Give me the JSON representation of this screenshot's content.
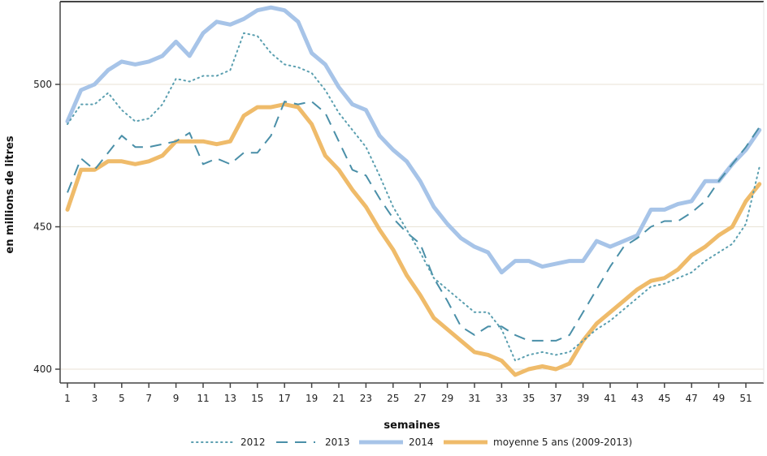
{
  "chart_data": {
    "type": "line",
    "title": "",
    "xlabel": "semaines",
    "ylabel": "en millions de litres",
    "xlim": [
      1,
      52
    ],
    "ylim": [
      395,
      532
    ],
    "x_ticks": [
      1,
      3,
      5,
      7,
      9,
      11,
      13,
      15,
      17,
      19,
      21,
      23,
      25,
      27,
      29,
      31,
      33,
      35,
      37,
      39,
      41,
      43,
      45,
      47,
      49,
      51
    ],
    "y_ticks": [
      400,
      450,
      500
    ],
    "grid": "horizontal",
    "legend_position": "bottom",
    "x": [
      1,
      2,
      3,
      4,
      5,
      6,
      7,
      8,
      9,
      10,
      11,
      12,
      13,
      14,
      15,
      16,
      17,
      18,
      19,
      20,
      21,
      22,
      23,
      24,
      25,
      26,
      27,
      28,
      29,
      30,
      31,
      32,
      33,
      34,
      35,
      36,
      37,
      38,
      39,
      40,
      41,
      42,
      43,
      44,
      45,
      46,
      47,
      48,
      49,
      50,
      51,
      52
    ],
    "series": [
      {
        "name": "2012",
        "style": "dotted",
        "color": "#5b9fb0",
        "values": [
          486,
          493,
          493,
          497,
          491,
          487,
          488,
          493,
          502,
          501,
          503,
          503,
          505,
          518,
          517,
          511,
          507,
          506,
          504,
          498,
          490,
          484,
          478,
          468,
          457,
          449,
          441,
          432,
          428,
          424,
          420,
          420,
          414,
          403,
          405,
          406,
          405,
          406,
          410,
          414,
          417,
          421,
          425,
          429,
          430,
          432,
          434,
          438,
          441,
          444,
          451,
          471
        ]
      },
      {
        "name": "2013",
        "style": "dashed",
        "color": "#4a8fa8",
        "values": [
          462,
          474,
          470,
          476,
          482,
          478,
          478,
          479,
          480,
          483,
          472,
          474,
          472,
          476,
          476,
          482,
          494,
          493,
          494,
          490,
          480,
          470,
          468,
          460,
          453,
          448,
          444,
          432,
          424,
          415,
          412,
          415,
          415,
          412,
          410,
          410,
          410,
          412,
          420,
          428,
          436,
          443,
          446,
          450,
          452,
          452,
          455,
          459,
          466,
          472,
          478,
          485
        ]
      },
      {
        "name": "2014",
        "style": "solid-thick",
        "color": "#a7c4e8",
        "values": [
          487,
          498,
          500,
          505,
          508,
          507,
          508,
          510,
          515,
          510,
          518,
          522,
          521,
          523,
          526,
          527,
          526,
          522,
          511,
          507,
          499,
          493,
          491,
          482,
          477,
          473,
          466,
          457,
          451,
          446,
          443,
          441,
          434,
          438,
          438,
          436,
          437,
          438,
          438,
          445,
          443,
          445,
          447,
          456,
          456,
          458,
          459,
          466,
          466,
          472,
          477,
          484
        ]
      },
      {
        "name": "moyenne 5 ans (2009-2013)",
        "style": "solid-thick",
        "color": "#efbb6a",
        "values": [
          456,
          470,
          470,
          473,
          473,
          472,
          473,
          475,
          480,
          480,
          480,
          479,
          480,
          489,
          492,
          492,
          493,
          492,
          486,
          475,
          470,
          463,
          457,
          449,
          442,
          433,
          426,
          418,
          414,
          410,
          406,
          405,
          403,
          398,
          400,
          401,
          400,
          402,
          410,
          416,
          420,
          424,
          428,
          431,
          432,
          435,
          440,
          443,
          447,
          450,
          459,
          465
        ]
      }
    ]
  },
  "legend": {
    "items": [
      {
        "label": "2012"
      },
      {
        "label": "2013"
      },
      {
        "label": "2014"
      },
      {
        "label": "moyenne 5 ans (2009-2013)"
      }
    ]
  },
  "colors": {
    "axis": "#444444",
    "grid": "#e8e2d6"
  }
}
